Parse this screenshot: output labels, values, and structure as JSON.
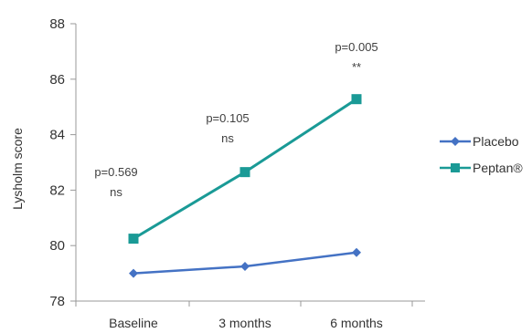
{
  "chart_data": {
    "type": "line",
    "ylabel": "Lysholm score",
    "ylim": [
      78,
      88
    ],
    "yticks": [
      78,
      80,
      82,
      84,
      86,
      88
    ],
    "categories": [
      "Baseline",
      "3 months",
      "6 months"
    ],
    "series": [
      {
        "name": "Placebo",
        "values": [
          79.0,
          79.25,
          79.75
        ],
        "color": "#4472c4",
        "marker": "diamond"
      },
      {
        "name": "Peptan®",
        "values": [
          80.25,
          82.65,
          85.28
        ],
        "color": "#1a9a96",
        "marker": "square"
      }
    ],
    "annotations": [
      {
        "category": "Baseline",
        "lines": [
          "p=0.569",
          "ns"
        ]
      },
      {
        "category": "3 months",
        "lines": [
          "p=0.105",
          "ns"
        ]
      },
      {
        "category": "6 months",
        "lines": [
          "p=0.005",
          "**"
        ]
      }
    ],
    "legend_position": "right",
    "grid": false
  }
}
